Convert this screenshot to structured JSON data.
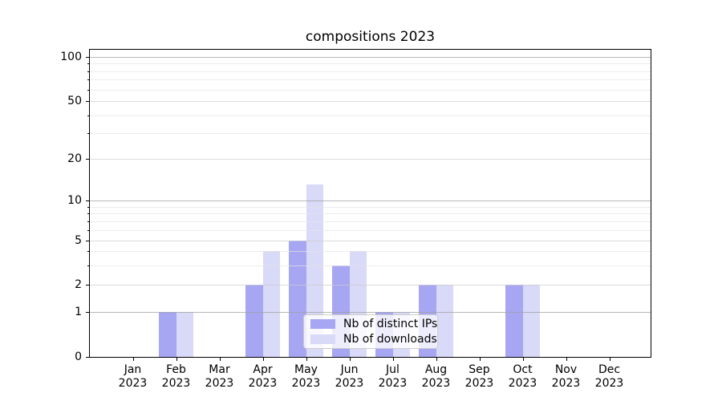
{
  "title": "compositions 2023",
  "legend": {
    "items": [
      {
        "label": "Nb of distinct IPs",
        "color": "#a6a6f2"
      },
      {
        "label": "Nb of downloads",
        "color": "#d9d9f8"
      }
    ]
  },
  "y_axis": {
    "tick_values": [
      0,
      1,
      2,
      5,
      10,
      20,
      50,
      100
    ],
    "tick_labels": [
      "0",
      "1",
      "2",
      "5",
      "10",
      "20",
      "50",
      "100"
    ]
  },
  "x_axis": {
    "months": [
      "Jan",
      "Feb",
      "Mar",
      "Apr",
      "May",
      "Jun",
      "Jul",
      "Aug",
      "Sep",
      "Oct",
      "Nov",
      "Dec"
    ],
    "year": "2023"
  },
  "chart_data": {
    "type": "bar",
    "title": "compositions 2023",
    "categories": [
      "Jan 2023",
      "Feb 2023",
      "Mar 2023",
      "Apr 2023",
      "May 2023",
      "Jun 2023",
      "Jul 2023",
      "Aug 2023",
      "Sep 2023",
      "Oct 2023",
      "Nov 2023",
      "Dec 2023"
    ],
    "series": [
      {
        "name": "Nb of distinct IPs",
        "color": "#a6a6f2",
        "values": [
          0,
          1,
          0,
          2,
          5,
          3,
          1,
          2,
          0,
          2,
          0,
          0
        ]
      },
      {
        "name": "Nb of downloads",
        "color": "#d9d9f8",
        "values": [
          0,
          1,
          0,
          4,
          13,
          4,
          1,
          2,
          0,
          2,
          0,
          0
        ]
      }
    ],
    "yscale": "symlog",
    "yticks": [
      0,
      1,
      2,
      5,
      10,
      20,
      50,
      100
    ],
    "ylim": [
      0,
      112
    ],
    "grid": true,
    "legend_position": "lower center"
  },
  "colors": {
    "grid_major": "rgba(160,160,160,0.75)",
    "grid_sub": "rgba(204,204,204,0.7)",
    "grid_minor": "rgba(228,228,228,0.7)",
    "spine": "#000000",
    "legend_border": "#cccccc",
    "legend_bg": "rgba(255,255,255,0.8)"
  }
}
